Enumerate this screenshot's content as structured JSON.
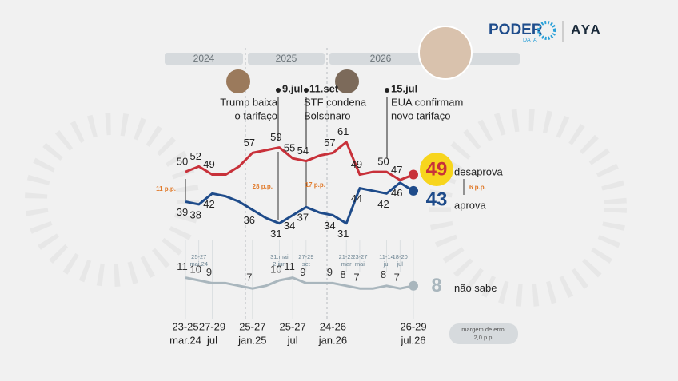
{
  "header": {
    "brand": "PODER",
    "brand_sub": "DATA",
    "partner": "AYA"
  },
  "chart_data": {
    "type": "line",
    "years": [
      "2024",
      "2025",
      "2026"
    ],
    "x_labels": [
      [
        "23-25",
        "mar.24"
      ],
      null,
      [
        "27-29",
        "jul"
      ],
      null,
      null,
      [
        "25-27",
        "jan.25"
      ],
      null,
      null,
      [
        "25-27",
        "jul"
      ],
      null,
      null,
      [
        "24-26",
        "jan.26"
      ],
      null,
      null,
      null,
      null,
      null,
      [
        "26-29",
        "jul.26"
      ]
    ],
    "x_sublabels": [
      null,
      [
        "25-27",
        "mai.24"
      ],
      null,
      null,
      null,
      null,
      null,
      [
        "31.mai",
        "2.jun"
      ],
      null,
      [
        "27-29",
        "set"
      ],
      null,
      null,
      [
        "21-23",
        "mar"
      ],
      [
        "23-27",
        "mai"
      ],
      null,
      [
        "11-14",
        "jul"
      ],
      [
        "18-20",
        "jul"
      ],
      null
    ],
    "ylim": [
      5,
      63
    ],
    "series": [
      {
        "name": "desaprova",
        "color": "#c8313a",
        "values": [
          50,
          52,
          49,
          49,
          52,
          57,
          58,
          59,
          55,
          54,
          56,
          57,
          61,
          49,
          50,
          50,
          47,
          49
        ],
        "value_labels": [
          "50",
          "52",
          "49",
          null,
          null,
          "57",
          null,
          "59",
          "55",
          "54",
          null,
          "57",
          "61",
          "49",
          null,
          "50",
          "47",
          null
        ]
      },
      {
        "name": "aprova",
        "color": "#1e4b8a",
        "values": [
          39,
          38,
          42,
          41,
          39,
          36,
          33,
          31,
          34,
          37,
          35,
          34,
          31,
          44,
          43,
          42,
          46,
          43
        ],
        "value_labels": [
          "39",
          "38",
          "42",
          null,
          null,
          "36",
          null,
          "31",
          "34",
          "37",
          null,
          "34",
          "31",
          "44",
          null,
          "42",
          "46",
          null
        ]
      },
      {
        "name": "não sabe",
        "color": "#a9b6bd",
        "values": [
          11,
          10,
          9,
          9,
          8,
          7,
          8,
          10,
          11,
          9,
          9,
          9,
          8,
          7,
          7,
          8,
          7,
          8
        ],
        "value_labels": [
          "11",
          "10",
          "9",
          null,
          null,
          "7",
          null,
          "10",
          "11",
          "9",
          null,
          "9",
          "8",
          "7",
          null,
          "8",
          "7",
          null
        ]
      }
    ],
    "annotations": [
      {
        "date": "9.jul",
        "text": [
          "Trump baixa",
          "o tarifaço"
        ]
      },
      {
        "date": "11.set",
        "text": [
          "STF condena",
          "Bolsonaro"
        ]
      },
      {
        "date": "15.jul",
        "text": [
          "EUA confirmam",
          "novo tarifaço"
        ]
      }
    ],
    "gaps": [
      "11 p.p.",
      "28 p.p.",
      "17 p.p.",
      "6 p.p."
    ],
    "note": [
      "margem de erro:",
      "2,0 p.p."
    ]
  }
}
